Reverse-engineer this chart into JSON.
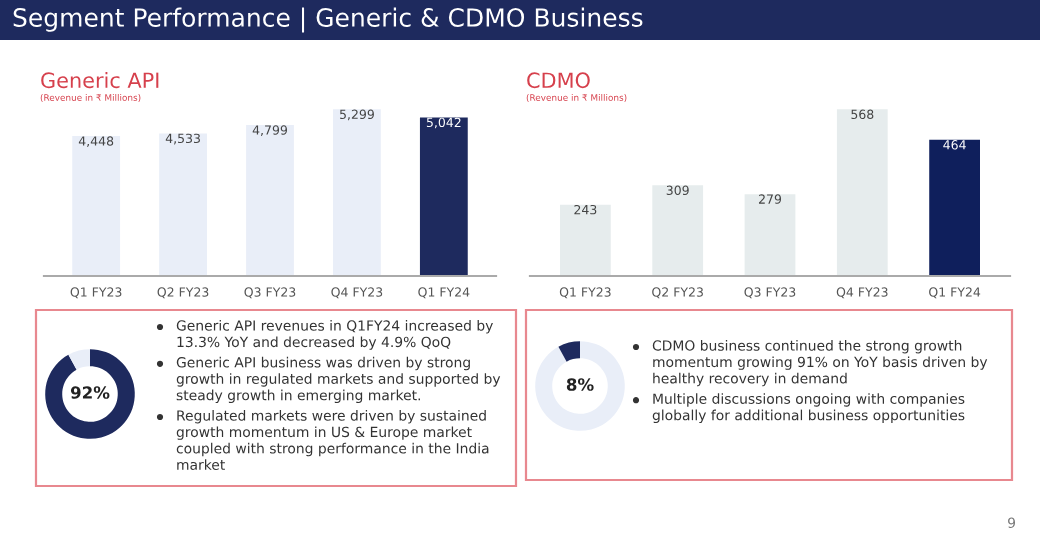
{
  "chart_data": [
    {
      "type": "bar",
      "title": "Generic API",
      "subtitle": "(Revenue in ₹ Millions)",
      "categories": [
        "Q1 FY23",
        "Q2 FY23",
        "Q3 FY23",
        "Q4 FY23",
        "Q1 FY24"
      ],
      "values": [
        4448,
        4533,
        4799,
        5299,
        5042
      ],
      "colors": [
        "#e9eef8",
        "#e9eef8",
        "#e9eef8",
        "#e9eef8",
        "#1e2a5e"
      ],
      "value_labels": [
        "4,448",
        "4,533",
        "4,799",
        "5,299",
        "5,042"
      ],
      "annotations": [
        "Segment Performance | Generic & CDMO Business"
      ]
    },
    {
      "type": "bar",
      "title": "CDMO",
      "subtitle": "(Revenue in ₹ Millions)",
      "categories": [
        "Q1 FY23",
        "Q2 FY23",
        "Q3 FY23",
        "Q4 FY23",
        "Q1 FY24"
      ],
      "values": [
        243,
        309,
        279,
        568,
        464
      ],
      "colors": [
        "#e6eced",
        "#e6eced",
        "#e6eced",
        "#e6eced",
        "#0f1f5c"
      ],
      "data_labels": true,
      "annotations": [
        "9"
      ]
    },
    {
      "type": "donut",
      "categories": [
        null,
        null
      ],
      "values": [
        92,
        8
      ],
      "colors": [
        "#1e2a5e",
        "#e9eef8"
      ],
      "value_labels": [
        "92%",
        null
      ],
      "annotations": [
        "Generic API revenues in Q1FY24 increased by 13.3% YoY and decreased by 4.9% QoQ",
        "Generic API business was driven by strong growth in regulated markets and supported by steady growth in emerging market.",
        "Regulated markets were driven by sustained growth momentum in US & Europe market coupled with strong performance in the India market"
      ]
    },
    {
      "type": "donut",
      "categories": [
        null,
        null
      ],
      "values": [
        92,
        8
      ],
      "colors": [
        "#e9eef8",
        "#1e2a5e"
      ],
      "value_labels": [
        null,
        "8%"
      ],
      "annotations": [
        "CDMO business continued the strong growth momentum growing 91% on YoY basis driven by healthy recovery in demand",
        "Multiple discussions ongoing with companies globally for additional business opportunities"
      ]
    }
  ]
}
